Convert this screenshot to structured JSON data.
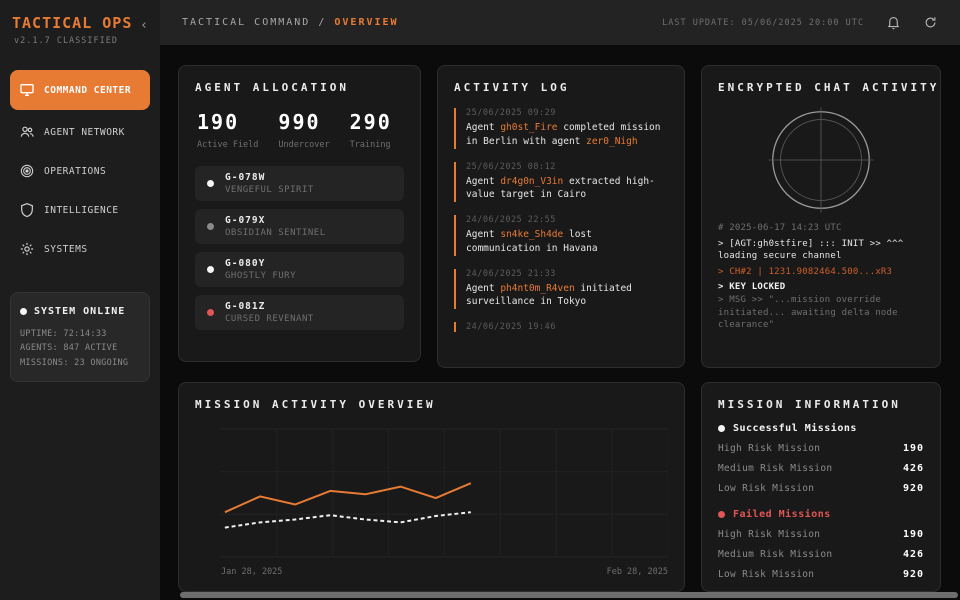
{
  "colors": {
    "accent": "#e87b34",
    "danger": "#e25555",
    "white_dot": "#f5f5f5",
    "gray_dot": "#8a8a8a"
  },
  "icons": {
    "collapse": "chevron-left",
    "nav": [
      "monitor-icon",
      "users-icon",
      "target-icon",
      "shield-icon",
      "gear-icon"
    ],
    "topbar": [
      "bell-icon",
      "refresh-icon"
    ],
    "chat": "radar-icon"
  },
  "app": {
    "title": "TACTICAL OPS",
    "subtitle": "v2.1.7 CLASSIFIED",
    "collapse_glyph": "‹"
  },
  "sidebar": {
    "items": [
      {
        "label": "COMMAND CENTER",
        "active": true
      },
      {
        "label": "AGENT NETWORK",
        "active": false
      },
      {
        "label": "OPERATIONS",
        "active": false
      },
      {
        "label": "INTELLIGENCE",
        "active": false
      },
      {
        "label": "SYSTEMS",
        "active": false
      }
    ],
    "status": {
      "title": "SYSTEM ONLINE",
      "uptime": "UPTIME: 72:14:33",
      "agents": "AGENTS: 847 ACTIVE",
      "missions": "MISSIONS: 23 ONGOING"
    }
  },
  "header": {
    "breadcrumb_root": "TACTICAL COMMAND / ",
    "breadcrumb_current": "OVERVIEW",
    "last_update": "LAST UPDATE: 05/06/2025 20:00 UTC"
  },
  "agent_allocation": {
    "title": "AGENT ALLOCATION",
    "stats": [
      {
        "value": "190",
        "label": "Active Field"
      },
      {
        "value": "990",
        "label": "Undercover"
      },
      {
        "value": "290",
        "label": "Training"
      }
    ],
    "agents": [
      {
        "code": "G-078W",
        "name": "VENGEFUL SPIRIT",
        "dot_color": "#f5f5f5"
      },
      {
        "code": "G-079X",
        "name": "OBSIDIAN SENTINEL",
        "dot_color": "#8a8a8a"
      },
      {
        "code": "G-080Y",
        "name": "GHOSTLY FURY",
        "dot_color": "#f5f5f5"
      },
      {
        "code": "G-081Z",
        "name": "CURSED REVENANT",
        "dot_color": "#e25555"
      }
    ]
  },
  "activity_log": {
    "title": "ACTIVITY LOG",
    "entries": [
      {
        "time": "25/06/2025 09:29",
        "t1": "Agent ",
        "a1": "gh0st_Fire",
        "t2": " completed mission in Berlin with agent ",
        "a2": "zer0_Nigh"
      },
      {
        "time": "25/06/2025 08:12",
        "t1": "Agent ",
        "a1": "dr4g0n_V3in",
        "t2": " extracted high-value target in Cairo",
        "a2": ""
      },
      {
        "time": "24/06/2025 22:55",
        "t1": "Agent ",
        "a1": "sn4ke_Sh4de",
        "t2": " lost communication in Havana",
        "a2": ""
      },
      {
        "time": "24/06/2025 21:33",
        "t1": "Agent ",
        "a1": "ph4nt0m_R4ven",
        "t2": " initiated surveillance in Tokyo",
        "a2": ""
      },
      {
        "time": "24/06/2025 19:46",
        "t1": "",
        "a1": "",
        "t2": "",
        "a2": ""
      }
    ]
  },
  "encrypted_chat": {
    "title": "ENCRYPTED CHAT ACTIVITY",
    "timestamp": "# 2025-06-17 14:23 UTC",
    "line_init": "> [AGT:gh0stfire] ::: INIT >> ^^^ loading secure channel",
    "line_channel": "> CH#2 | 1231.9082464.500...xR3",
    "line_key": "> KEY LOCKED",
    "line_msg": "> MSG >> \"...mission override initiated... awaiting delta node clearance\""
  },
  "chart_data": {
    "type": "line",
    "title": "MISSION ACTIVITY OVERVIEW",
    "xlabel": "",
    "ylabel": "",
    "x_start_label": "Jan 28, 2025",
    "x_end_label": "Feb 28, 2025",
    "ylim": [
      200,
      500
    ],
    "yticks": [
      500,
      400,
      300,
      200
    ],
    "grid": true,
    "legend_position": "none",
    "data_extent_fraction": 0.56,
    "series": [
      {
        "name": "primary-missions",
        "color": "#e87b34",
        "dash": false,
        "values": [
          305,
          342,
          323,
          355,
          347,
          365,
          338,
          373
        ]
      },
      {
        "name": "secondary-missions",
        "color": "#f0f0f0",
        "dash": true,
        "values": [
          269,
          281,
          288,
          298,
          288,
          281,
          296,
          305
        ]
      }
    ]
  },
  "mission_info": {
    "title": "MISSION INFORMATION",
    "sections": [
      {
        "label": "Successful Missions",
        "dot_color": "#f5f5f5",
        "label_color": "#f5f5f5",
        "rows": [
          {
            "label": "High Risk Mission",
            "value": "190"
          },
          {
            "label": "Medium Risk Mission",
            "value": "426"
          },
          {
            "label": "Low Risk Mission",
            "value": "920"
          }
        ]
      },
      {
        "label": "Failed Missions",
        "dot_color": "#e25555",
        "label_color": "#e25555",
        "rows": [
          {
            "label": "High Risk Mission",
            "value": "190"
          },
          {
            "label": "Medium Risk Mission",
            "value": "426"
          },
          {
            "label": "Low Risk Mission",
            "value": "920"
          }
        ]
      }
    ]
  }
}
